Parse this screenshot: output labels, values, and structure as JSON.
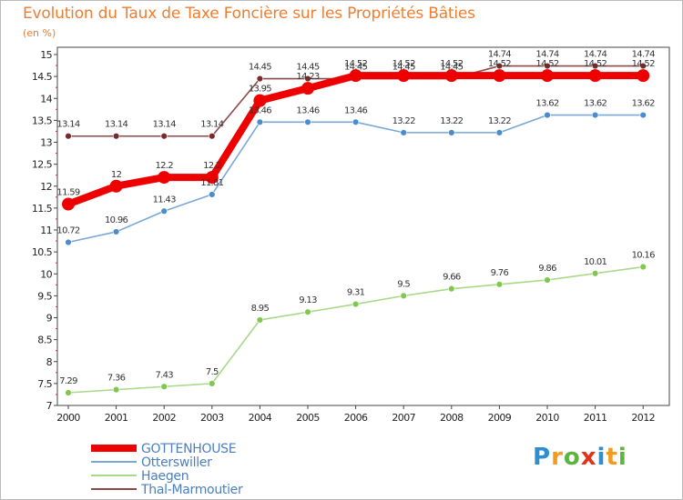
{
  "title": "Evolution du Taux de Taxe Foncière sur les Propriétés Bâties",
  "subtitle": "(en %)",
  "logo": "Proxiti",
  "chart_data": {
    "type": "line",
    "title": "Evolution du Taux de Taxe Foncière sur les Propriétés Bâties",
    "ylabel": "(en %)",
    "xlabel": "",
    "x": [
      "2000",
      "2001",
      "2002",
      "2003",
      "2004",
      "2005",
      "2006",
      "2007",
      "2008",
      "2009",
      "2010",
      "2011",
      "2012"
    ],
    "ylim": [
      7,
      15
    ],
    "yticks": [
      "7",
      "7.5",
      "8",
      "8.5",
      "9",
      "9.5",
      "10",
      "10.5",
      "11",
      "11.5",
      "12",
      "12.5",
      "13",
      "13.5",
      "14",
      "14.5",
      "15"
    ],
    "grid": false,
    "legend_position": "bottom-left",
    "series": [
      {
        "name": "Haegen",
        "color": "#a8d888",
        "marker": "#7ec850",
        "values": [
          7.29,
          7.36,
          7.43,
          7.5,
          8.95,
          9.13,
          9.31,
          9.5,
          9.66,
          9.76,
          9.86,
          10.01,
          10.16
        ],
        "labels": [
          "7.29",
          "7.36",
          "7.43",
          "7.5",
          "8.95",
          "9.13",
          "9.31",
          "9.5",
          "9.66",
          "9.76",
          "9.86",
          "10.01",
          "10.16"
        ]
      },
      {
        "name": "Otterswiller",
        "color": "#7aa8d6",
        "marker": "#4a8ccc",
        "values": [
          10.72,
          10.96,
          11.43,
          11.81,
          13.46,
          13.46,
          13.46,
          13.22,
          13.22,
          13.22,
          13.62,
          13.62,
          13.62
        ],
        "labels": [
          "10.72",
          "10.96",
          "11.43",
          "11.81",
          "13.46",
          "13.46",
          "13.46",
          "13.22",
          "13.22",
          "13.22",
          "13.62",
          "13.62",
          "13.62"
        ]
      },
      {
        "name": "Thal-Marmoutier",
        "color": "#8b4a4a",
        "marker": "#7a2a2a",
        "values": [
          13.14,
          13.14,
          13.14,
          13.14,
          14.45,
          14.45,
          14.45,
          14.45,
          14.45,
          14.74,
          14.74,
          14.74,
          14.74
        ],
        "labels": [
          "13.14",
          "13.14",
          "13.14",
          "13.14",
          "14.45",
          "14.45",
          "14.45",
          "14.45",
          "14.45",
          "14.74",
          "14.74",
          "14.74",
          "14.74"
        ]
      },
      {
        "name": "GOTTENHOUSE",
        "color": "#ee0000",
        "marker": "#ee0000",
        "values": [
          11.59,
          12,
          12.2,
          12.2,
          13.95,
          14.23,
          14.52,
          14.52,
          14.52,
          14.52,
          14.52,
          14.52,
          14.52
        ],
        "labels": [
          "11.59",
          "12",
          "12.2",
          "12.2",
          "13.95",
          "14.23",
          "14.52",
          "14.52",
          "14.52",
          "14.52",
          "14.52",
          "14.52",
          "14.52"
        ]
      }
    ],
    "legend_order": [
      "GOTTENHOUSE",
      "Otterswiller",
      "Haegen",
      "Thal-Marmoutier"
    ]
  }
}
